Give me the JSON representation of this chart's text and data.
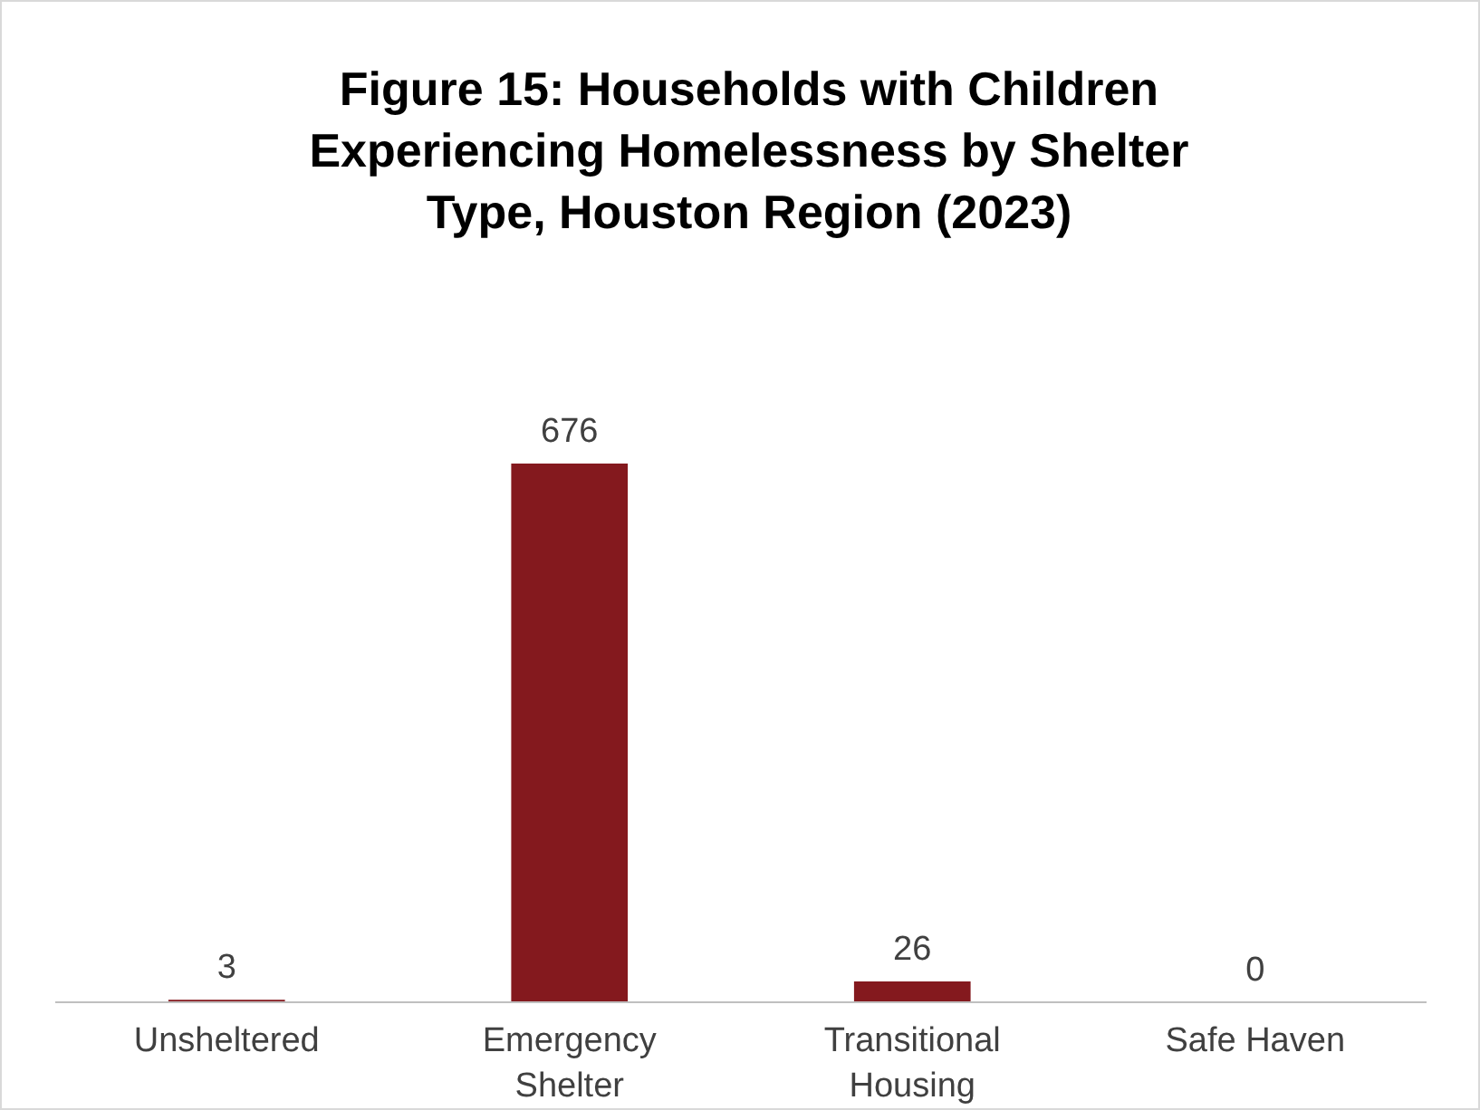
{
  "chart_data": {
    "type": "bar",
    "title": "Figure 15: Households with Children Experiencing Homelessness by Shelter Type, Houston Region (2023)",
    "categories": [
      "Unsheltered",
      "Emergency Shelter",
      "Transitional Housing",
      "Safe Haven"
    ],
    "values": [
      3,
      676,
      26,
      0
    ],
    "color": "#84191e",
    "data_labels": true,
    "grid": false
  }
}
